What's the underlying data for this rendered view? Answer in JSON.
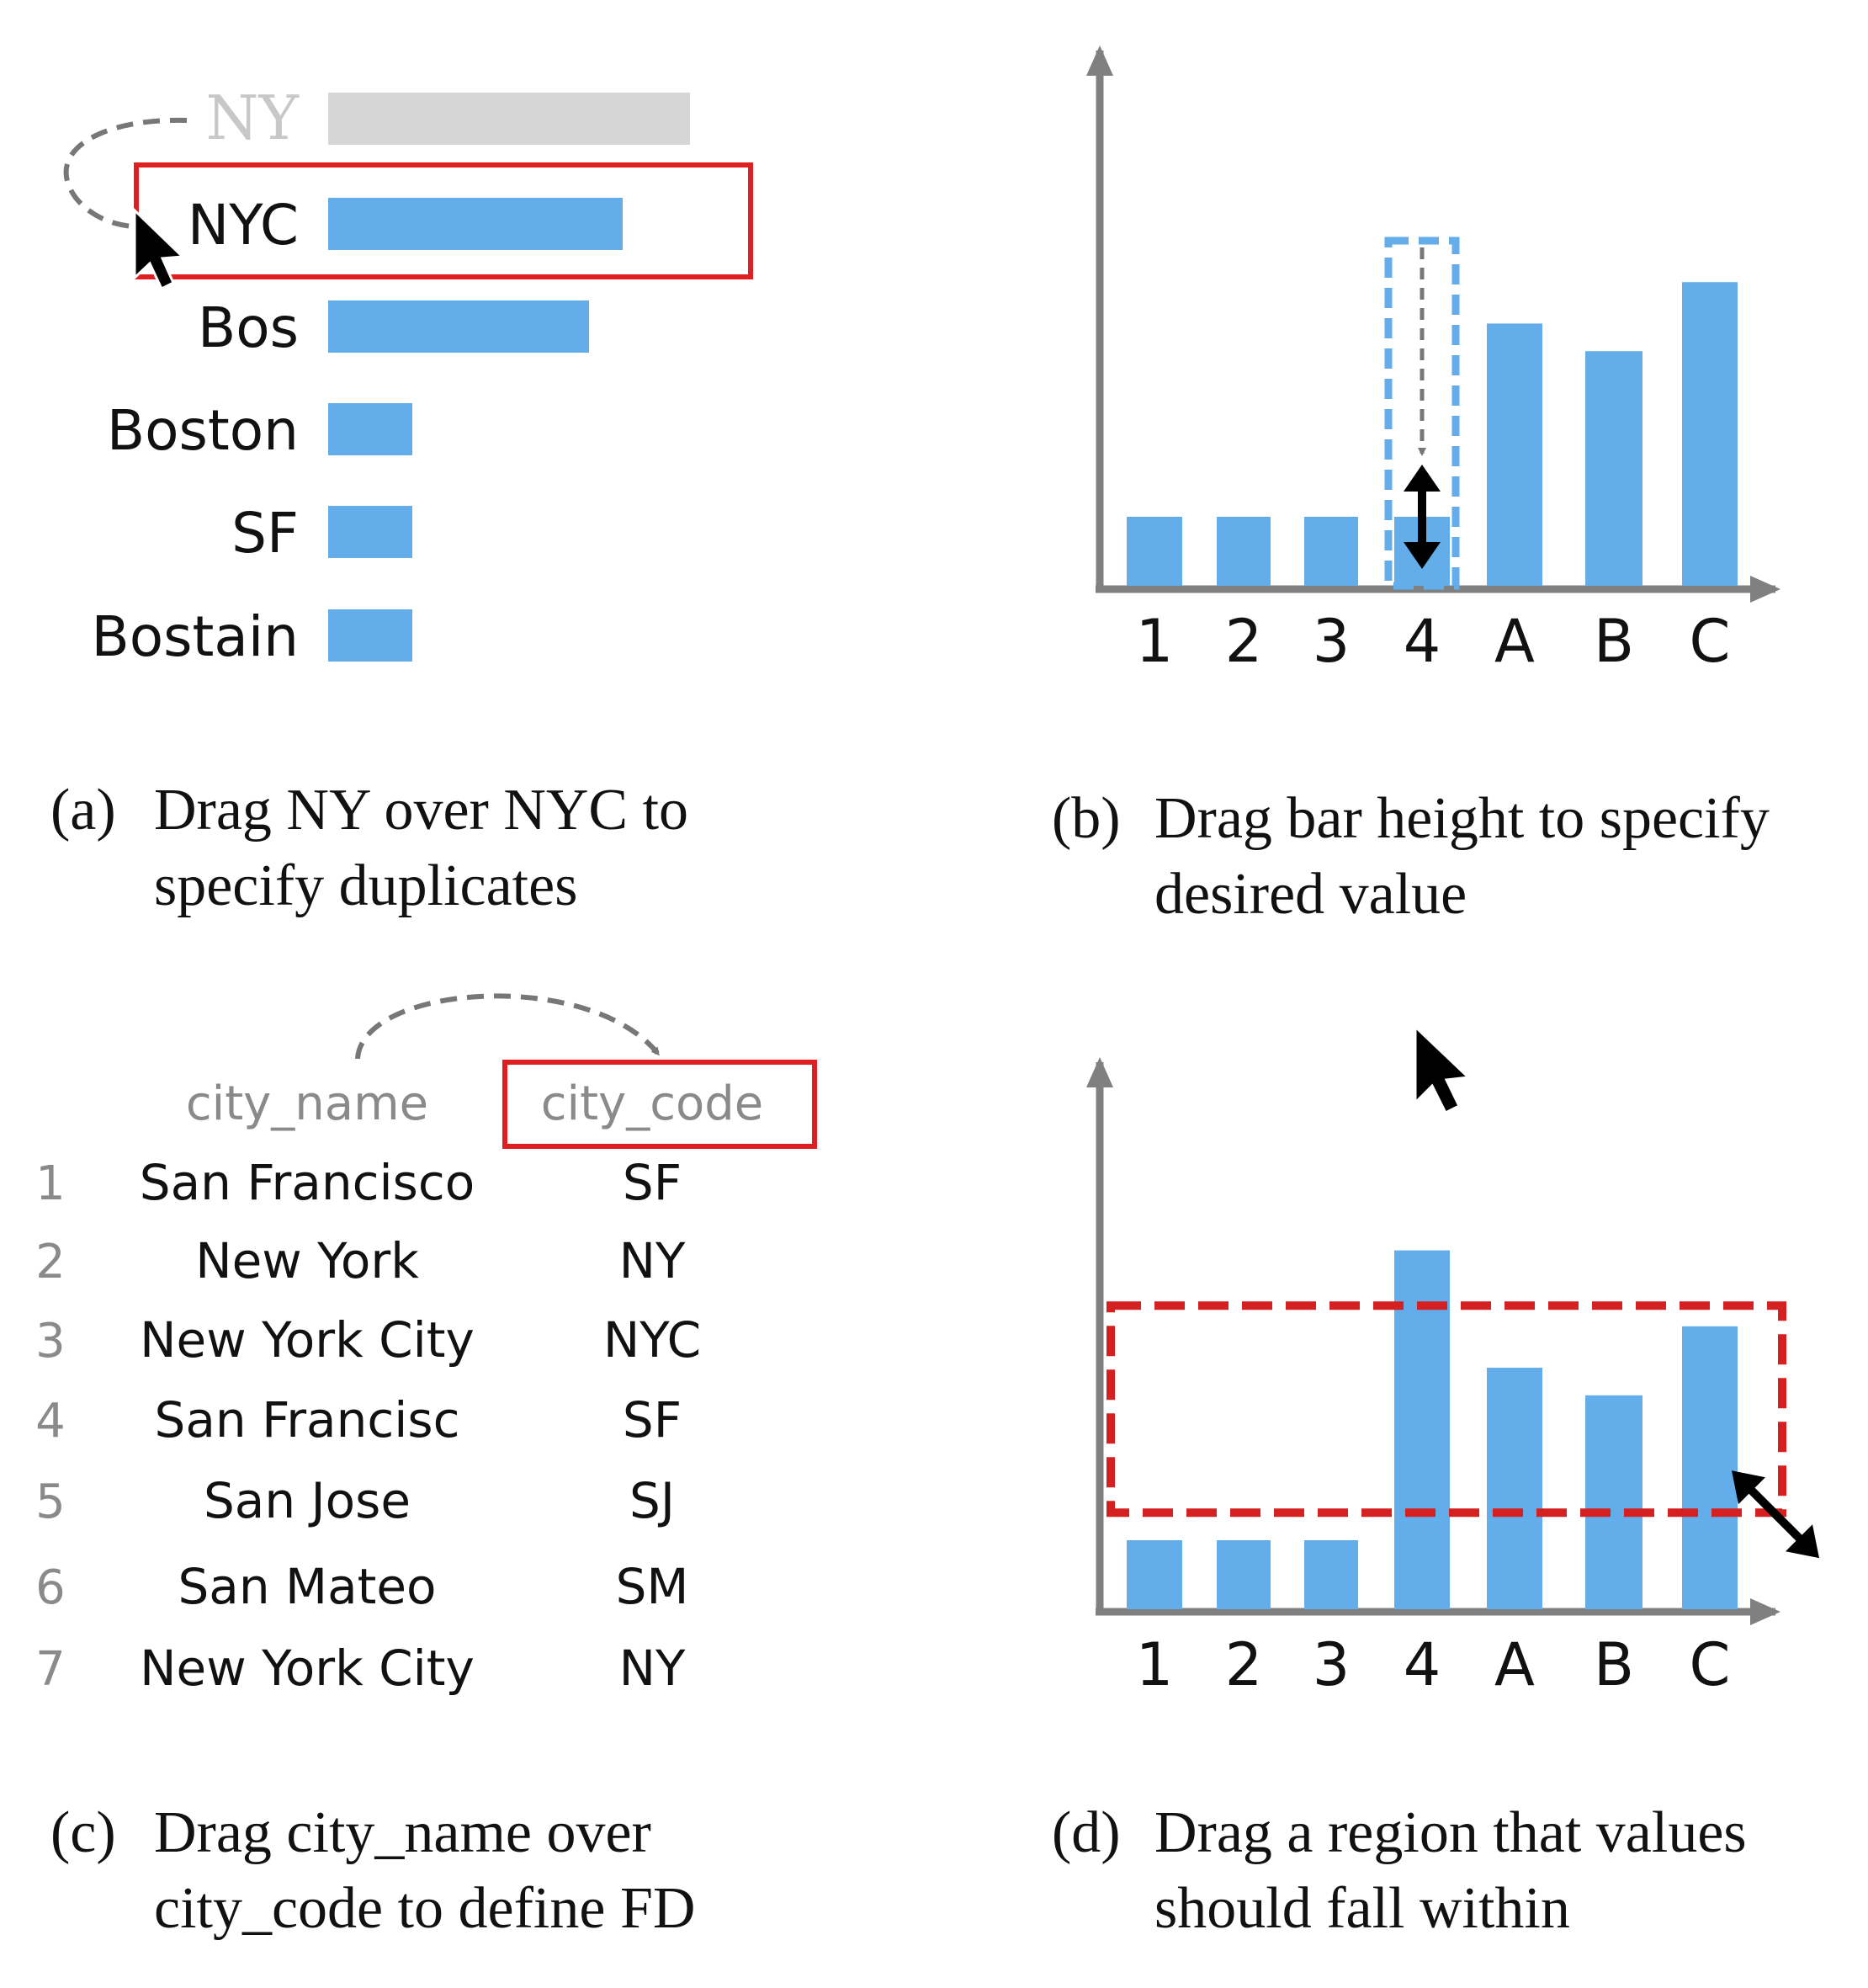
{
  "panel_a": {
    "ghost_label": "NY",
    "bars": [
      {
        "label": "NYC",
        "value": 3.5
      },
      {
        "label": "Bos",
        "value": 3.1
      },
      {
        "label": "Boston",
        "value": 1.0
      },
      {
        "label": "SF",
        "value": 1.0
      },
      {
        "label": "Bostain",
        "value": 1.0
      }
    ],
    "ghost_value": 4.3,
    "caption_label": "(a)",
    "caption_line1": "Drag NY over NYC to",
    "caption_line2": "specify duplicates"
  },
  "panel_b": {
    "categories": [
      "1",
      "2",
      "3",
      "4",
      "A",
      "B",
      "C"
    ],
    "values": [
      1.0,
      1.0,
      1.0,
      1.0,
      3.8,
      3.4,
      4.4
    ],
    "target_value": 5.0,
    "caption_label": "(b)",
    "caption_line1": "Drag bar height to specify",
    "caption_line2": "desired value"
  },
  "panel_c": {
    "columns": [
      "city_name",
      "city_code"
    ],
    "rows": [
      {
        "idx": "1",
        "city_name": "San Francisco",
        "city_code": "SF"
      },
      {
        "idx": "2",
        "city_name": "New York",
        "city_code": "NY"
      },
      {
        "idx": "3",
        "city_name": "New York City",
        "city_code": "NYC"
      },
      {
        "idx": "4",
        "city_name": "San Francisc",
        "city_code": "SF"
      },
      {
        "idx": "5",
        "city_name": "San Jose",
        "city_code": "SJ"
      },
      {
        "idx": "6",
        "city_name": "San Mateo",
        "city_code": "SM"
      },
      {
        "idx": "7",
        "city_name": "New York City",
        "city_code": "NY"
      }
    ],
    "caption_label": "(c)",
    "caption_line1": "Drag city_name over",
    "caption_line2": "city_code to define FD"
  },
  "panel_d": {
    "categories": [
      "1",
      "2",
      "3",
      "4",
      "A",
      "B",
      "C"
    ],
    "values": [
      1.0,
      1.0,
      1.0,
      5.2,
      3.5,
      3.1,
      4.1
    ],
    "region": {
      "low": 1.4,
      "high": 4.4
    },
    "caption_label": "(d)",
    "caption_line1": "Drag a region that values",
    "caption_line2": "should fall within"
  },
  "colors": {
    "bar": "#63aeea",
    "ghost_bar": "#d6d6d6",
    "axis": "#808080",
    "highlight": "#e02020",
    "region": "#d42020",
    "dashed_arrow": "#777777"
  }
}
